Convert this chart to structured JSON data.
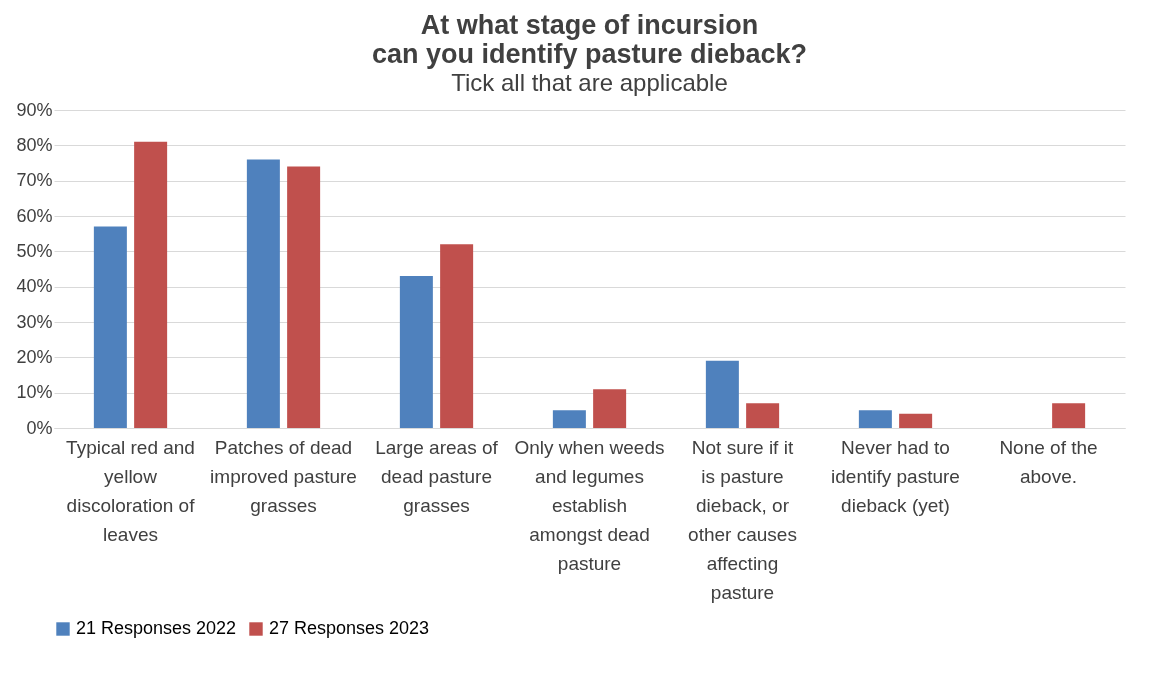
{
  "chart_data": {
    "type": "bar",
    "title": [
      "At what stage of incursion",
      "can you identify pasture dieback?"
    ],
    "subtitle": "Tick all that are applicable",
    "categories": [
      "Typical red and yellow discoloration of leaves",
      "Patches of dead improved pasture grasses",
      "Large areas of dead pasture grasses",
      "Only when weeds and legumes establish amongst dead pasture",
      "Not sure if it is pasture dieback, or other causes affecting pasture",
      "Never had to identify pasture dieback (yet)",
      "None of the above."
    ],
    "series": [
      {
        "name": "21 Responses 2022",
        "color": "#4f81bd",
        "values": [
          57,
          76,
          43,
          5,
          19,
          5,
          0
        ]
      },
      {
        "name": "27 Responses 2023",
        "color": "#c0504d",
        "values": [
          81,
          74,
          52,
          11,
          7,
          4,
          7
        ]
      }
    ],
    "ylim": [
      0,
      90
    ],
    "yticks": [
      {
        "value": 0,
        "label": "0%"
      },
      {
        "value": 10,
        "label": "10%"
      },
      {
        "value": 20,
        "label": "20%"
      },
      {
        "value": 30,
        "label": "30%"
      },
      {
        "value": 40,
        "label": "40%"
      },
      {
        "value": 50,
        "label": "50%"
      },
      {
        "value": 60,
        "label": "60%"
      },
      {
        "value": 70,
        "label": "70%"
      },
      {
        "value": 80,
        "label": "80%"
      },
      {
        "value": 90,
        "label": "90%"
      }
    ],
    "grid": "y",
    "legend": "bottom"
  }
}
